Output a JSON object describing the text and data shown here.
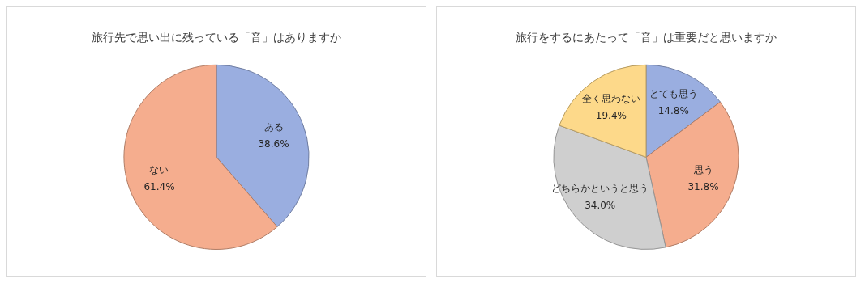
{
  "chart_data": [
    {
      "type": "pie",
      "title": "旅行先で思い出に残っている「音」はありますか",
      "categories": [
        "ある",
        "ない"
      ],
      "values": [
        38.6,
        61.4
      ],
      "colors": [
        "#9aaee0",
        "#f5ad8e"
      ],
      "value_labels": [
        "38.6%",
        "61.4%"
      ],
      "legend": false
    },
    {
      "type": "pie",
      "title": "旅行をするにあたって「音」は重要だと思いますか",
      "categories": [
        "とても思う",
        "思う",
        "どちらかというと思う",
        "全く思わない"
      ],
      "values": [
        14.8,
        31.8,
        34.0,
        19.4
      ],
      "colors": [
        "#9aaee0",
        "#f5ad8e",
        "#cfcfcf",
        "#fdd98a"
      ],
      "value_labels": [
        "14.8%",
        "31.8%",
        "34.0%",
        "19.4%"
      ],
      "legend": false
    }
  ]
}
